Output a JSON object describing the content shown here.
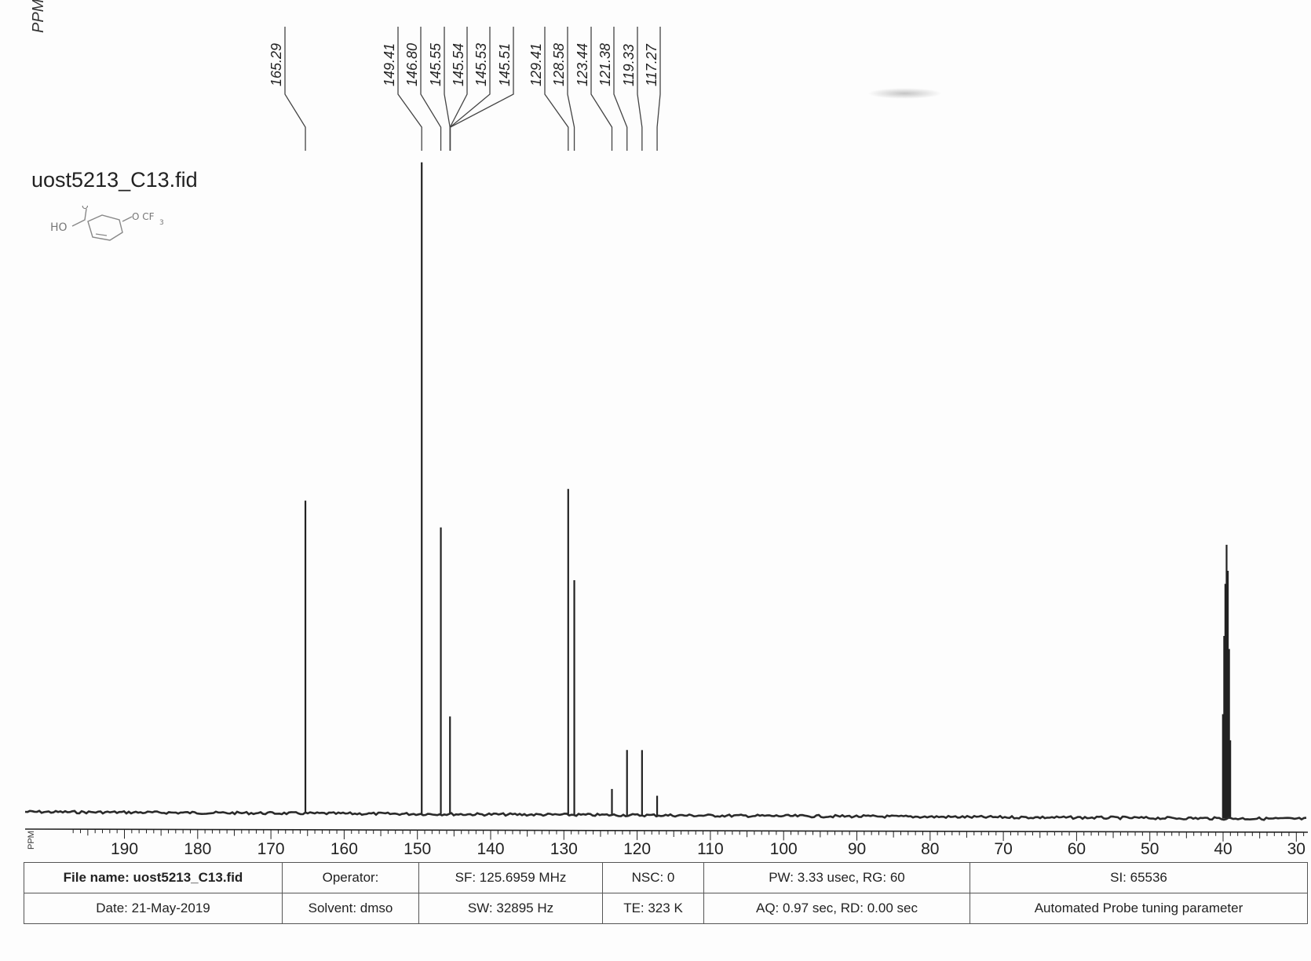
{
  "corner_label": "PPM",
  "title": "uost5213_C13.fid",
  "structure_sketch": "HO C(=O) pyridine O CF3 (hand-drawn)",
  "colors": {
    "ink": "#222222",
    "baseline": "#2a2a2a",
    "paper": "#fdfdfd"
  },
  "chart_data": {
    "type": "line",
    "title": "uost5213_C13.fid",
    "xlabel": "PPM",
    "ylabel": "",
    "xlim": [
      197,
      27
    ],
    "reversed_x": true,
    "grid": false,
    "ticks": [
      190,
      180,
      170,
      160,
      150,
      140,
      130,
      120,
      110,
      100,
      90,
      80,
      70,
      60,
      50,
      40,
      30
    ],
    "peak_labels": [
      "165.29",
      "149.41",
      "146.80",
      "145.55",
      "145.54",
      "145.53",
      "145.51",
      "129.41",
      "128.58",
      "123.44",
      "121.38",
      "119.33",
      "117.27"
    ],
    "peaks": [
      {
        "ppm": 165.29,
        "intensity": 0.48
      },
      {
        "ppm": 149.41,
        "intensity": 1.0
      },
      {
        "ppm": 146.8,
        "intensity": 0.44
      },
      {
        "ppm": 145.55,
        "intensity": 0.15
      },
      {
        "ppm": 129.41,
        "intensity": 0.5
      },
      {
        "ppm": 128.58,
        "intensity": 0.36
      },
      {
        "ppm": 123.44,
        "intensity": 0.04
      },
      {
        "ppm": 121.38,
        "intensity": 0.1
      },
      {
        "ppm": 119.33,
        "intensity": 0.1
      },
      {
        "ppm": 117.27,
        "intensity": 0.03
      },
      {
        "ppm": 39.52,
        "intensity": 0.42
      },
      {
        "ppm": 39.35,
        "intensity": 0.38
      },
      {
        "ppm": 39.69,
        "intensity": 0.36
      },
      {
        "ppm": 39.85,
        "intensity": 0.28
      },
      {
        "ppm": 39.18,
        "intensity": 0.26
      },
      {
        "ppm": 40.02,
        "intensity": 0.16
      },
      {
        "ppm": 39.02,
        "intensity": 0.12
      }
    ]
  },
  "footer": {
    "file_name": "File name: uost5213_C13.fid",
    "date": "Date: 21-May-2019",
    "operator": "Operator:",
    "solvent": "Solvent: dmso",
    "sf": "SF: 125.6959 MHz",
    "sw": "SW: 32895 Hz",
    "nsc": "NSC: 0",
    "te": "TE: 323 K",
    "pw": "PW: 3.33 usec, RG: 60",
    "aq": "AQ: 0.97 sec, RD: 0.00 sec",
    "si": "SI: 65536",
    "probe": "Automated Probe tuning parameter"
  }
}
